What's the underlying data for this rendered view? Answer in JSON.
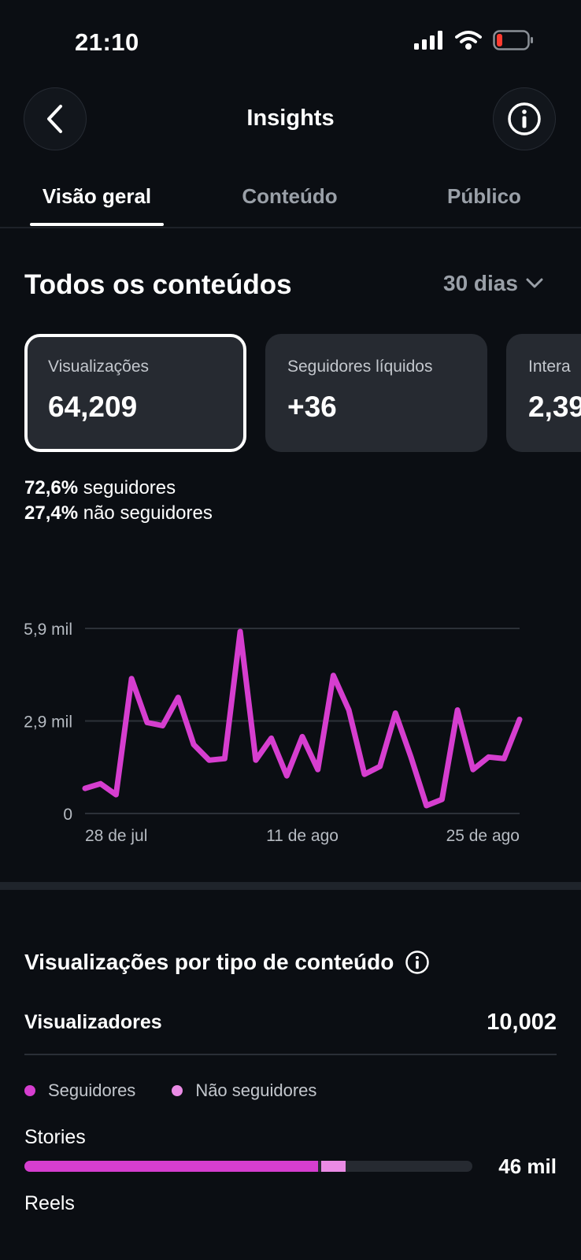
{
  "status_bar": {
    "time": "21:10"
  },
  "header": {
    "title": "Insights"
  },
  "tabs": [
    {
      "label": "Visão geral",
      "active": true
    },
    {
      "label": "Conteúdo",
      "active": false
    },
    {
      "label": "Público",
      "active": false
    }
  ],
  "section": {
    "title": "Todos os conteúdos",
    "period": "30 dias"
  },
  "metrics": [
    {
      "label": "Visualizações",
      "value": "64,209",
      "selected": true
    },
    {
      "label": "Seguidores líquidos",
      "value": "+36",
      "selected": false
    },
    {
      "label": "Intera",
      "value": "2,39",
      "selected": false
    }
  ],
  "split": {
    "followers_pct": "72,6%",
    "followers_text": "seguidores",
    "nonfollowers_pct": "27,4%",
    "nonfollowers_text": "não seguidores"
  },
  "chart_data": {
    "type": "line",
    "y_ticks": [
      "5,9 mil",
      "2,9 mil",
      "0"
    ],
    "x_ticks": [
      "28 de jul",
      "11 de ago",
      "25 de ago"
    ],
    "ylim": [
      0,
      5900
    ],
    "grid": true,
    "series_color": "#d63ecf",
    "values": [
      800,
      950,
      600,
      4300,
      2900,
      2800,
      3700,
      2200,
      1700,
      1750,
      5800,
      1700,
      2400,
      1200,
      2450,
      1400,
      4400,
      3300,
      1250,
      1500,
      3200,
      1800,
      250,
      450,
      3300,
      1400,
      1800,
      1750,
      3000
    ]
  },
  "content_type": {
    "title": "Visualizações por tipo de conteúdo",
    "viewers_label": "Visualizadores",
    "viewers_value": "10,002",
    "legend": [
      {
        "label": "Seguidores",
        "color": "#d63ecf"
      },
      {
        "label": "Não seguidores",
        "color": "#ea8be5"
      }
    ],
    "rows": [
      {
        "label": "Stories",
        "value": "46 mil",
        "followers_fraction": 0.655,
        "nonfollowers_fraction": 0.055
      },
      {
        "label": "Reels"
      }
    ]
  }
}
